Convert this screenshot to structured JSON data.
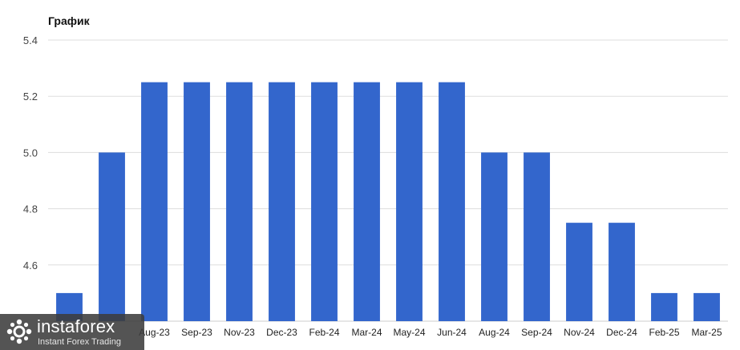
{
  "chart_data": {
    "type": "bar",
    "title": "График",
    "xlabel": "",
    "ylabel": "",
    "categories": [
      "",
      "",
      "Aug-23",
      "Sep-23",
      "Nov-23",
      "Dec-23",
      "Feb-24",
      "Mar-24",
      "May-24",
      "Jun-24",
      "Aug-24",
      "Sep-24",
      "Nov-24",
      "Dec-24",
      "Feb-25",
      "Mar-25"
    ],
    "values": [
      4.5,
      5.0,
      5.25,
      5.25,
      5.25,
      5.25,
      5.25,
      5.25,
      5.25,
      5.25,
      5.0,
      5.0,
      4.75,
      4.75,
      4.5,
      4.5
    ],
    "ylim": [
      4.4,
      5.4
    ],
    "yticks": [
      "4.6",
      "4.8",
      "5.0",
      "5.2",
      "5.4"
    ],
    "grid": true,
    "legend": "none",
    "bar_color": "#3366cc",
    "grid_color": "#dddddd"
  },
  "watermark": {
    "brand": "instaforex",
    "tagline": "Instant Forex Trading"
  }
}
